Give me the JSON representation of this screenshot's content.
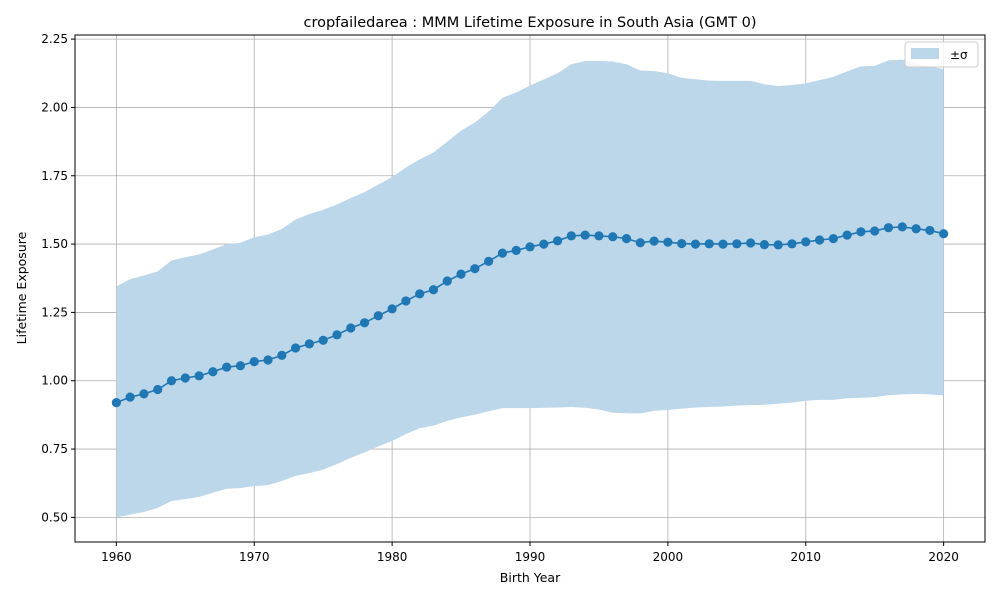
{
  "chart_data": {
    "type": "line",
    "title": "cropfailedarea : MMM Lifetime Exposure in South Asia (GMT 0)",
    "xlabel": "Birth Year",
    "ylabel": "Lifetime Exposure",
    "xlim": [
      1957,
      2023
    ],
    "ylim": [
      0.41,
      2.265
    ],
    "xticks": [
      1960,
      1970,
      1980,
      1990,
      2000,
      2010,
      2020
    ],
    "yticks": [
      0.5,
      0.75,
      1.0,
      1.25,
      1.5,
      1.75,
      2.0,
      2.25
    ],
    "xtick_labels": [
      "1960",
      "1970",
      "1980",
      "1990",
      "2000",
      "2010",
      "2020"
    ],
    "ytick_labels": [
      "0.50",
      "0.75",
      "1.00",
      "1.25",
      "1.50",
      "1.75",
      "2.00",
      "2.25"
    ],
    "grid": true,
    "legend": {
      "placement": "top-right",
      "band_label": "±σ"
    },
    "colors": {
      "line": "#1f77b4",
      "band": "#bcd6ea",
      "grid": "#b0b0b0"
    },
    "x": [
      1960,
      1961,
      1962,
      1963,
      1964,
      1965,
      1966,
      1967,
      1968,
      1969,
      1970,
      1971,
      1972,
      1973,
      1974,
      1975,
      1976,
      1977,
      1978,
      1979,
      1980,
      1981,
      1982,
      1983,
      1984,
      1985,
      1986,
      1987,
      1988,
      1989,
      1990,
      1991,
      1992,
      1993,
      1994,
      1995,
      1996,
      1997,
      1998,
      1999,
      2000,
      2001,
      2002,
      2003,
      2004,
      2005,
      2006,
      2007,
      2008,
      2009,
      2010,
      2011,
      2012,
      2013,
      2014,
      2015,
      2016,
      2017,
      2018,
      2019,
      2020
    ],
    "series": [
      {
        "values": [
          0.92,
          0.94,
          0.952,
          0.968,
          1.0,
          1.01,
          1.018,
          1.033,
          1.05,
          1.055,
          1.07,
          1.076,
          1.093,
          1.12,
          1.135,
          1.148,
          1.168,
          1.193,
          1.212,
          1.238,
          1.263,
          1.292,
          1.318,
          1.333,
          1.365,
          1.39,
          1.41,
          1.437,
          1.467,
          1.477,
          1.49,
          1.5,
          1.512,
          1.53,
          1.533,
          1.53,
          1.527,
          1.52,
          1.505,
          1.511,
          1.507,
          1.502,
          1.5,
          1.501,
          1.5,
          1.501,
          1.504,
          1.498,
          1.497,
          1.501,
          1.508,
          1.515,
          1.52,
          1.533,
          1.545,
          1.548,
          1.56,
          1.563,
          1.556,
          1.55,
          1.538
        ],
        "lower": [
          0.5,
          0.51,
          0.52,
          0.535,
          0.56,
          0.567,
          0.575,
          0.59,
          0.605,
          0.607,
          0.615,
          0.618,
          0.633,
          0.652,
          0.662,
          0.675,
          0.695,
          0.718,
          0.738,
          0.76,
          0.78,
          0.805,
          0.826,
          0.836,
          0.853,
          0.866,
          0.876,
          0.888,
          0.9,
          0.9,
          0.9,
          0.901,
          0.902,
          0.904,
          0.901,
          0.895,
          0.883,
          0.881,
          0.88,
          0.89,
          0.893,
          0.898,
          0.902,
          0.904,
          0.906,
          0.909,
          0.911,
          0.912,
          0.916,
          0.92,
          0.927,
          0.93,
          0.93,
          0.936,
          0.938,
          0.94,
          0.947,
          0.95,
          0.952,
          0.95,
          0.946
        ],
        "upper": [
          1.345,
          1.372,
          1.385,
          1.4,
          1.44,
          1.452,
          1.462,
          1.48,
          1.5,
          1.505,
          1.525,
          1.535,
          1.555,
          1.59,
          1.61,
          1.625,
          1.645,
          1.668,
          1.69,
          1.718,
          1.745,
          1.78,
          1.81,
          1.835,
          1.875,
          1.915,
          1.945,
          1.985,
          2.035,
          2.055,
          2.08,
          2.102,
          2.125,
          2.158,
          2.17,
          2.17,
          2.168,
          2.158,
          2.135,
          2.133,
          2.125,
          2.108,
          2.103,
          2.098,
          2.097,
          2.097,
          2.097,
          2.085,
          2.078,
          2.082,
          2.088,
          2.1,
          2.112,
          2.132,
          2.15,
          2.152,
          2.172,
          2.175,
          2.16,
          2.15,
          2.14
        ]
      }
    ]
  }
}
